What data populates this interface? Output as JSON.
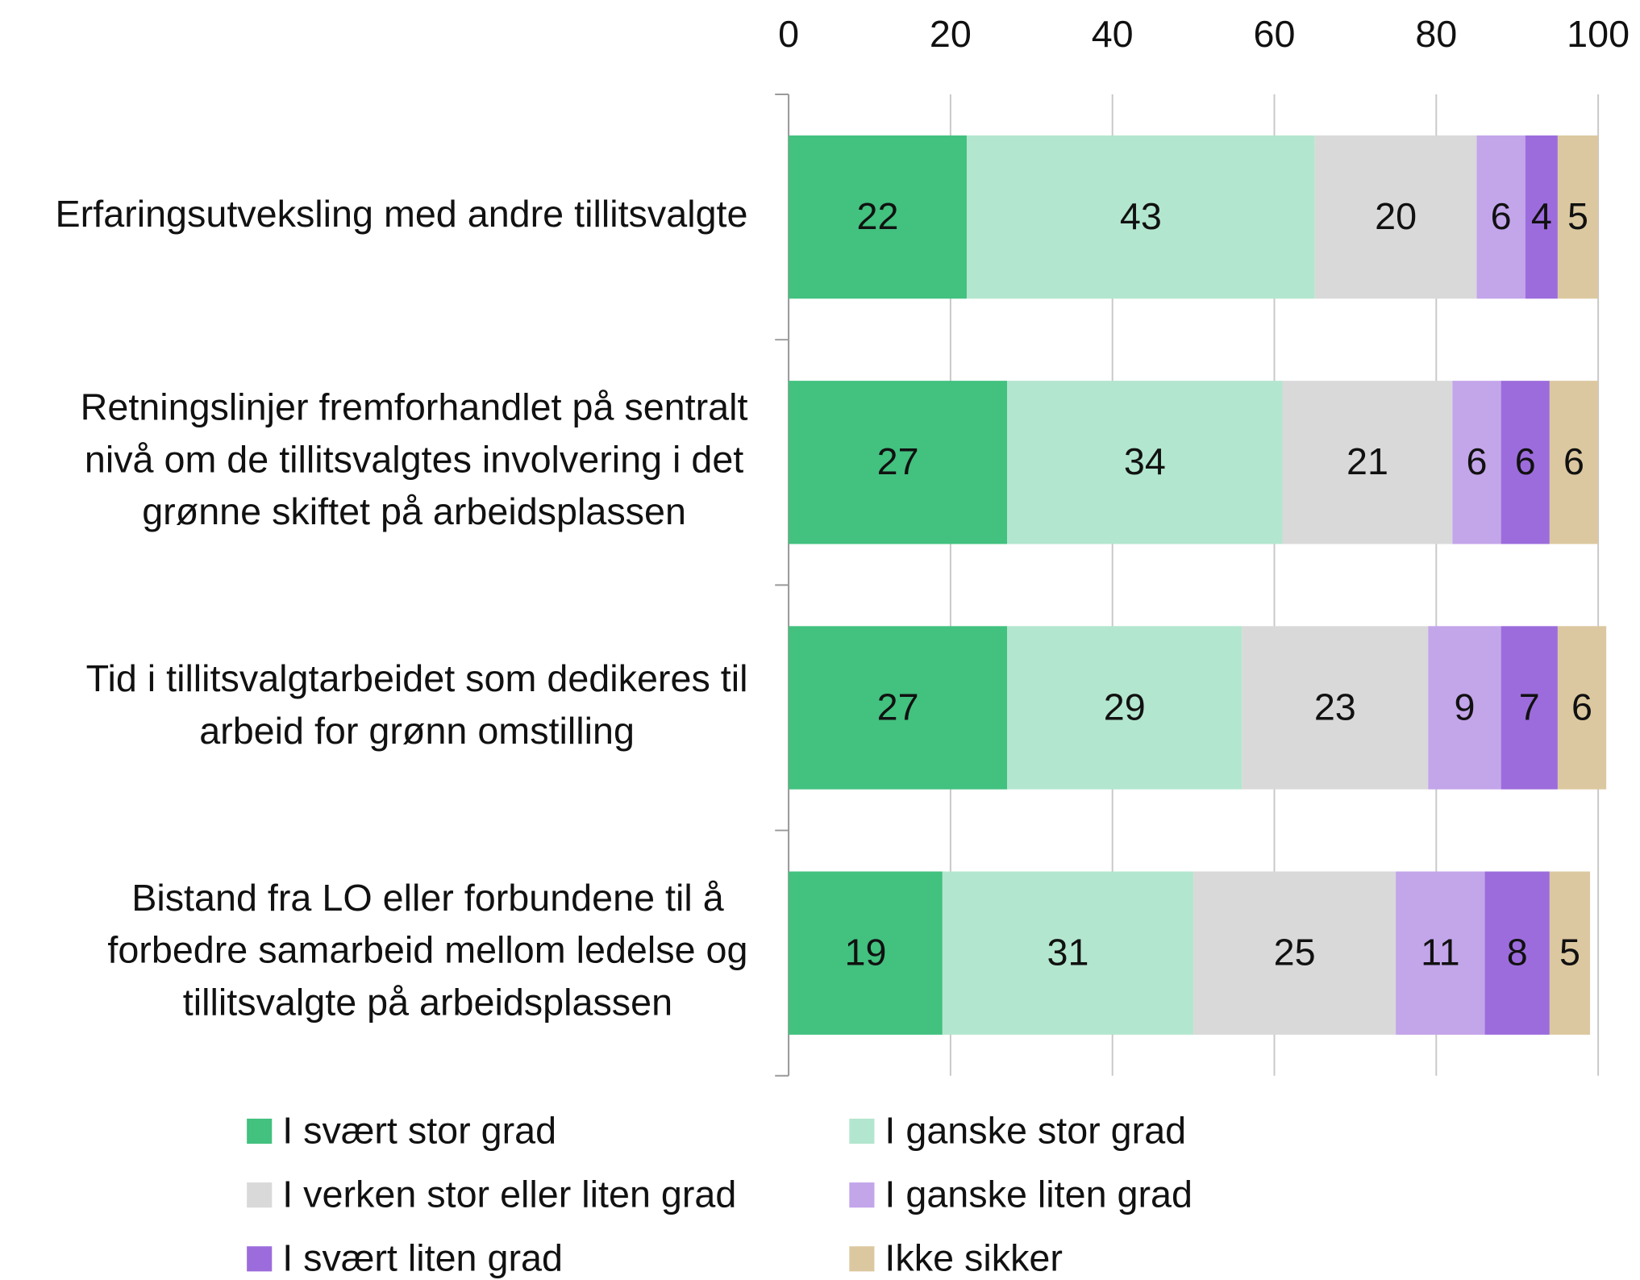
{
  "chart_data": {
    "type": "stacked-barh",
    "categories": [
      "Erfaringsutveksling med andre tillitsvalgte",
      "Retningslinjer fremforhandlet på sentralt nivå om de tillitsvalgtes involvering i det grønne skiftet på arbeidsplassen",
      "Tid i tillitsvalgtarbeidet som dedikeres til arbeid for grønn omstilling",
      "Bistand fra LO eller forbundene til å forbedre samarbeid mellom ledelse og tillitsvalgte på arbeidsplassen"
    ],
    "series": [
      {
        "name": "I svært stor grad",
        "color": "#42c17f",
        "values": [
          22,
          27,
          27,
          19
        ]
      },
      {
        "name": "I ganske stor grad",
        "color": "#b3e6cf",
        "values": [
          43,
          34,
          29,
          31
        ]
      },
      {
        "name": "I verken stor eller liten grad",
        "color": "#d9d9d9",
        "values": [
          20,
          21,
          23,
          25
        ]
      },
      {
        "name": "I ganske liten grad",
        "color": "#c3a5ea",
        "values": [
          6,
          6,
          9,
          11
        ]
      },
      {
        "name": "I svært liten grad",
        "color": "#9c6cdc",
        "values": [
          4,
          6,
          7,
          8
        ]
      },
      {
        "name": "Ikke sikker",
        "color": "#dcc8a0",
        "values": [
          5,
          6,
          6,
          5
        ]
      }
    ],
    "xlim": [
      0,
      100
    ],
    "xticks": [
      0,
      20,
      40,
      60,
      80,
      100
    ],
    "grid": true,
    "legend": "bottom"
  }
}
